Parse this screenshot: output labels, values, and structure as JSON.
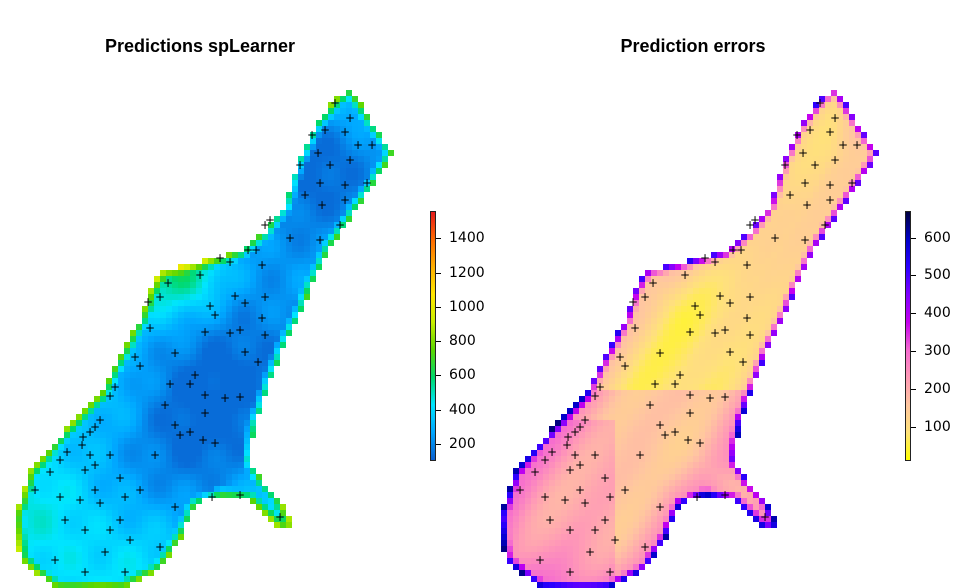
{
  "chart_data": [
    {
      "type": "heatmap",
      "title": "Predictions spLearner",
      "legend_position": "right",
      "color_scale": [
        "#0a5fcf",
        "#00a6ff",
        "#00e5ff",
        "#00d96a",
        "#5cd600",
        "#c8ee00",
        "#ffe600",
        "#ffb000",
        "#ff6a00",
        "#e41a1c"
      ],
      "scale_range": [
        100,
        1560
      ],
      "ticks": [
        "200",
        "400",
        "600",
        "800",
        "1000",
        "1200",
        "1400"
      ],
      "tick_values": [
        200,
        400,
        600,
        800,
        1000,
        1200,
        1400
      ]
    },
    {
      "type": "heatmap",
      "title": "Prediction errors",
      "legend_position": "right",
      "color_scale": [
        "#ffff00",
        "#ffe27a",
        "#ffc6a0",
        "#ff9ab6",
        "#f56ad0",
        "#c400ee",
        "#7f00ff",
        "#2a00ff",
        "#0000c8",
        "#000040"
      ],
      "scale_range": [
        10,
        670
      ],
      "ticks": [
        "100",
        "200",
        "300",
        "400",
        "500",
        "600"
      ],
      "tick_values": [
        100,
        200,
        300,
        400,
        500,
        600
      ]
    }
  ],
  "sample_marker": "+"
}
